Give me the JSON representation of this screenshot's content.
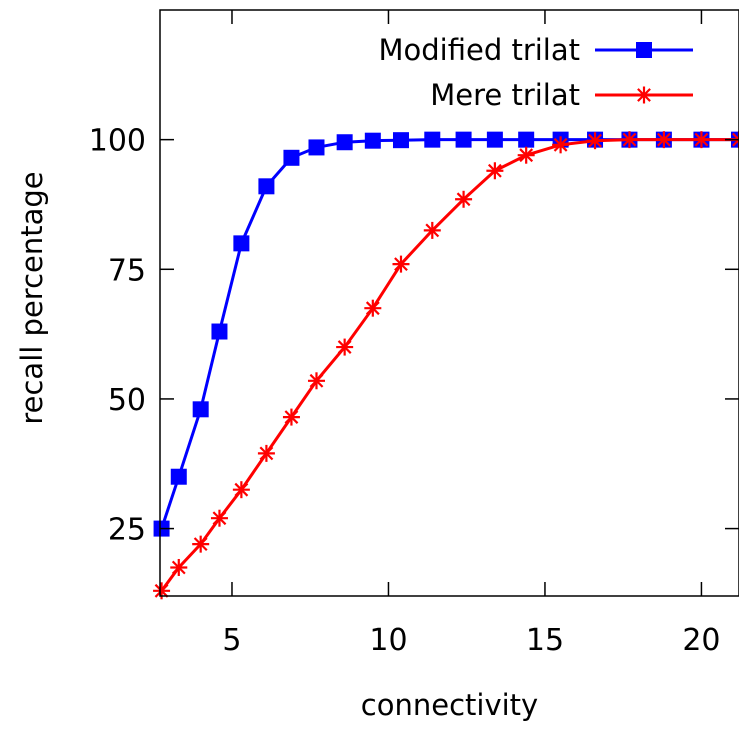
{
  "chart_data": {
    "type": "line",
    "title": "",
    "xlabel": "connectivity",
    "ylabel": "recall percentage",
    "xlim": [
      2.7,
      21.2
    ],
    "ylim": [
      12,
      125
    ],
    "xticks": [
      5,
      10,
      15,
      20
    ],
    "xtick_labels": [
      "5",
      "10",
      "15",
      "20"
    ],
    "yticks": [
      25,
      50,
      75,
      100
    ],
    "ytick_labels": [
      "25",
      "50",
      "75",
      "100"
    ],
    "grid": false,
    "legend_position": "top-right",
    "series": [
      {
        "name": "Modified trilat",
        "color": "#0000ff",
        "marker": "square",
        "x": [
          2.75,
          3.3,
          4.0,
          4.6,
          5.3,
          6.1,
          6.9,
          7.7,
          8.6,
          9.5,
          10.4,
          11.4,
          12.4,
          13.4,
          14.4,
          15.5,
          16.6,
          17.7,
          18.8,
          20.0,
          21.2
        ],
        "y": [
          25,
          35,
          48,
          63,
          80,
          91,
          96.5,
          98.5,
          99.5,
          99.8,
          99.9,
          100,
          100,
          100,
          100,
          100,
          100,
          100,
          100,
          100,
          100
        ]
      },
      {
        "name": "Mere trilat",
        "color": "#ff0000",
        "marker": "asterisk",
        "x": [
          2.75,
          3.3,
          4.0,
          4.6,
          5.3,
          6.1,
          6.9,
          7.7,
          8.6,
          9.5,
          10.4,
          11.4,
          12.4,
          13.4,
          14.4,
          15.5,
          16.6,
          17.7,
          18.8,
          20.0,
          21.2
        ],
        "y": [
          13,
          17.5,
          22,
          27,
          32.5,
          39.5,
          46.5,
          53.5,
          60,
          67.5,
          76,
          82.5,
          88.5,
          94,
          97,
          99,
          99.8,
          100,
          100,
          100,
          100
        ]
      }
    ]
  }
}
